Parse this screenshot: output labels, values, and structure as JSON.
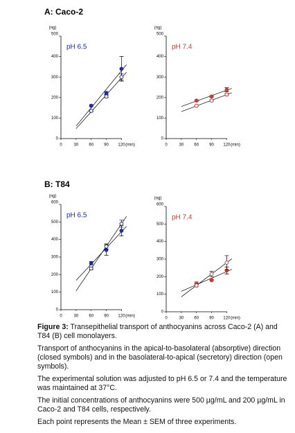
{
  "panels": [
    {
      "title": "A: Caco-2"
    },
    {
      "title": "B: T84"
    }
  ],
  "chart_data": [
    {
      "type": "scatter",
      "title": "pH 6.5",
      "title_color": "#1c2bb0",
      "y_label": "(ng)",
      "x_label": "(min)",
      "x": [
        60,
        90,
        120
      ],
      "xlim": [
        0,
        140
      ],
      "xticks": [
        0,
        30,
        60,
        90,
        120
      ],
      "ylim": [
        0,
        500
      ],
      "yticks": [
        0,
        100,
        200,
        300,
        400,
        500
      ],
      "trend": true,
      "series": [
        {
          "marker": "closed",
          "color": "#1c2bb0",
          "values": [
            160,
            222,
            340
          ],
          "errors": [
            5,
            8,
            60
          ]
        },
        {
          "marker": "open",
          "color": "#1c2bb0",
          "values": [
            135,
            205,
            300
          ],
          "errors": [
            5,
            6,
            15
          ]
        }
      ]
    },
    {
      "type": "scatter",
      "title": "pH 7.4",
      "title_color": "#d0392b",
      "y_label": "(ng)",
      "x_label": "(min)",
      "x": [
        60,
        90,
        120
      ],
      "xlim": [
        0,
        140
      ],
      "xticks": [
        0,
        30,
        60,
        90,
        120
      ],
      "ylim": [
        0,
        500
      ],
      "yticks": [
        0,
        100,
        200,
        300,
        400,
        500
      ],
      "trend": true,
      "series": [
        {
          "marker": "closed",
          "color": "#d0392b",
          "values": [
            185,
            205,
            238
          ],
          "errors": [
            4,
            4,
            10
          ]
        },
        {
          "marker": "open",
          "color": "#d0392b",
          "values": [
            160,
            185,
            215
          ],
          "errors": [
            3,
            4,
            5
          ]
        }
      ]
    },
    {
      "type": "scatter",
      "title": "pH 6.5",
      "title_color": "#1c2bb0",
      "y_label": "(ng)",
      "x_label": "(min)",
      "x": [
        60,
        90,
        120
      ],
      "xlim": [
        0,
        140
      ],
      "xticks": [
        0,
        30,
        60,
        90,
        120
      ],
      "ylim": [
        0,
        600
      ],
      "yticks": [
        0,
        100,
        200,
        300,
        400,
        500,
        600
      ],
      "trend": true,
      "series": [
        {
          "marker": "closed",
          "color": "#1c2bb0",
          "values": [
            265,
            340,
            450
          ],
          "errors": [
            10,
            30,
            30
          ]
        },
        {
          "marker": "open",
          "color": "#1c2bb0",
          "values": [
            235,
            360,
            490
          ],
          "errors": [
            8,
            15,
            20
          ]
        }
      ]
    },
    {
      "type": "scatter",
      "title": "pH 7.4",
      "title_color": "#d0392b",
      "y_label": "(ng)",
      "x_label": "(min)",
      "x": [
        60,
        90,
        120
      ],
      "xlim": [
        0,
        140
      ],
      "xticks": [
        0,
        30,
        60,
        90,
        120
      ],
      "ylim": [
        0,
        600
      ],
      "yticks": [
        0,
        100,
        200,
        300,
        400,
        500,
        600
      ],
      "trend": true,
      "series": [
        {
          "marker": "closed",
          "color": "#d0392b",
          "values": [
            160,
            180,
            235
          ],
          "errors": [
            10,
            5,
            20
          ]
        },
        {
          "marker": "open",
          "color": "#d0392b",
          "values": [
            150,
            215,
            280
          ],
          "errors": [
            8,
            15,
            40
          ]
        }
      ]
    }
  ],
  "caption": {
    "label": "Figure 3:",
    "text": " Transepithelial transport of anthocyanins across Caco-2 (A) and T84 (B) cell monolayers.",
    "paragraphs": [
      "Transport of anthocyanins in the apical-to-basolateral (absorptive) direction (closed symbols) and in the basolateral-to-apical (secretory) direction (open symbols).",
      "The experimental solution was adjusted to pH 6.5 or 7.4 and the temperature was maintained at 37°C.",
      "The initial concentrations of anthocyanins were 500 µg/mL and 200 µg/mL in Caco-2 and T84 cells, respectively.",
      "Each point represents the Mean ± SEM of three experiments."
    ]
  }
}
